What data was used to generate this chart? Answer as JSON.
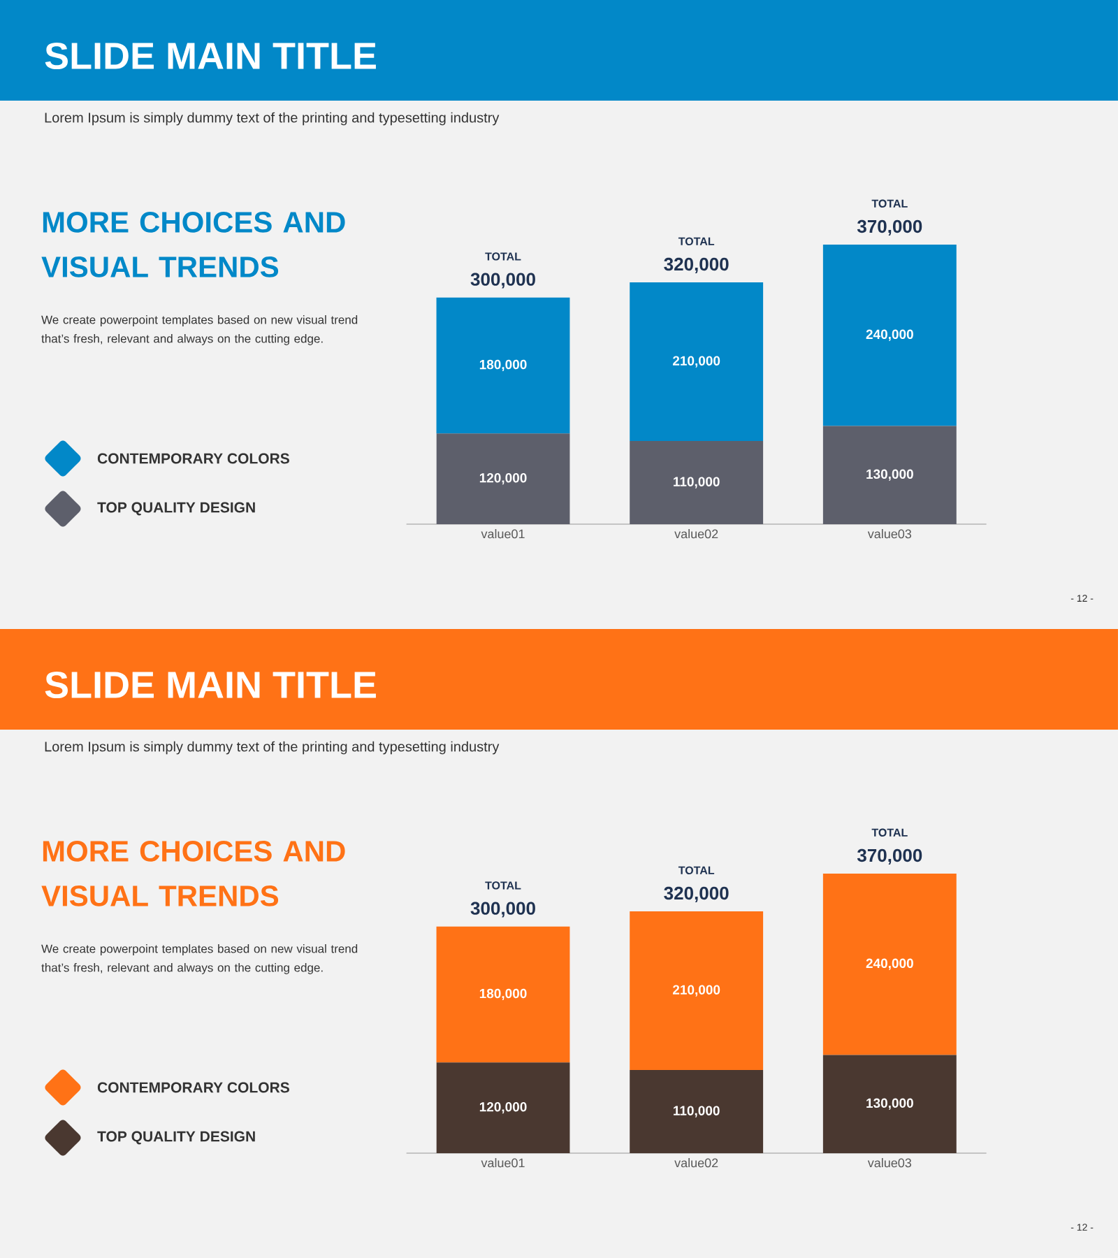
{
  "chart_data": [
    {
      "type": "bar",
      "title": "SLIDE MAIN TITLE",
      "subtitle": "Lorem Ipsum is simply dummy text of the printing and typesetting industry",
      "categories": [
        "value01",
        "value02",
        "value03"
      ],
      "stacked": true,
      "legend": "left",
      "series": [
        {
          "name": "TOP QUALITY DESIGN",
          "color": "#5d5f6b",
          "values": [
            120000,
            110000,
            130000
          ],
          "value_labels": [
            "120,000",
            "110,000",
            "130,000"
          ]
        },
        {
          "name": "CONTEMPORARY COLORS",
          "color": "#0288c8",
          "values": [
            180000,
            210000,
            240000
          ],
          "value_labels": [
            "180,000",
            "210,000",
            "240,000"
          ]
        }
      ],
      "totals": [
        "300,000",
        "320,000",
        "370,000"
      ],
      "annotations": [
        "MORE CHOICES AND VISUAL TRENDS",
        "We create powerpoint templates based on new visual trend that’s fresh, relevant and always on the cutting edge.",
        "- 12 -",
        "TOTAL",
        "TOTAL",
        "TOTAL"
      ]
    },
    {
      "type": "bar",
      "title": "SLIDE MAIN TITLE",
      "subtitle": "Lorem Ipsum is simply dummy text of the printing and typesetting industry",
      "categories": [
        "value01",
        "value02",
        "value03"
      ],
      "stacked": true,
      "legend": "left",
      "series": [
        {
          "name": "TOP QUALITY DESIGN",
          "color": "#4a3830",
          "values": [
            120000,
            110000,
            130000
          ],
          "value_labels": [
            "120,000",
            "110,000",
            "130,000"
          ]
        },
        {
          "name": "CONTEMPORARY COLORS",
          "color": "#ff7216",
          "values": [
            180000,
            210000,
            240000
          ],
          "value_labels": [
            "180,000",
            "210,000",
            "240,000"
          ]
        }
      ],
      "totals": [
        "300,000",
        "320,000",
        "370,000"
      ],
      "annotations": [
        "MORE CHOICES AND VISUAL TRENDS",
        "We create powerpoint templates based on new visual trend that’s fresh, relevant and always on the cutting edge.",
        "- 12 -",
        "TOTAL",
        "TOTAL",
        "TOTAL"
      ]
    }
  ]
}
